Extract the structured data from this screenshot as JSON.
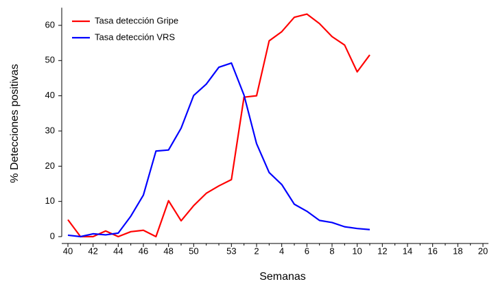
{
  "chart_data": {
    "type": "line",
    "y_label": "% Detecciones positivas",
    "x_label": "Semanas",
    "categories": [
      "40",
      null,
      "42",
      null,
      "44",
      null,
      "46",
      null,
      "48",
      null,
      "50",
      null,
      null,
      "53",
      null,
      "2",
      null,
      "4",
      null,
      "6",
      null,
      "8",
      null,
      "10",
      null,
      "12",
      null,
      "14",
      null,
      "16",
      null,
      "18",
      null,
      "20"
    ],
    "series": [
      {
        "name": "Tasa detección Gripe",
        "color": "#ff0000",
        "values": [
          4.8,
          0,
          0,
          1.6,
          0,
          1.4,
          1.8,
          0,
          10.2,
          4.5,
          8.8,
          12.3,
          14.4,
          16.2,
          39.6,
          40,
          55.6,
          58.2,
          62.3,
          63.2,
          60.5,
          56.8,
          54.4,
          46.8,
          51.6,
          null,
          null,
          null,
          null,
          null,
          null,
          null,
          null,
          null
        ]
      },
      {
        "name": "Tasa detección VRS",
        "color": "#0000ff",
        "values": [
          0.4,
          0,
          0.8,
          0.5,
          1.0,
          5.8,
          11.8,
          24.3,
          24.6,
          30.8,
          40.1,
          43.3,
          48.1,
          49.3,
          40.2,
          26.4,
          18.2,
          14.8,
          9.2,
          7.2,
          4.6,
          4.0,
          2.8,
          2.3,
          2.0,
          null,
          null,
          null,
          null,
          null,
          null,
          null,
          null,
          null
        ]
      }
    ],
    "ylim": [
      0,
      65
    ],
    "yticks": [
      0,
      10,
      20,
      30,
      40,
      50,
      60
    ],
    "legend": "upper left",
    "grid": false
  }
}
